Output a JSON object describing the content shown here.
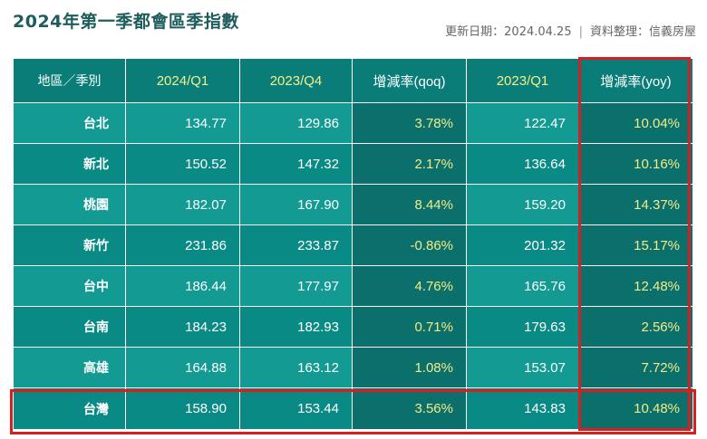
{
  "title": "2024年第一季都會區季指數",
  "source": {
    "updated": "更新日期：2024.04.25",
    "sep": "|",
    "org": "資料整理：信義房屋"
  },
  "colors": {
    "header_bg": "#0a7d78",
    "row_light": "#129a93",
    "row_dark": "#0a8a84",
    "rate_col_bg": "#0b6f6b",
    "rate_text": "#f2ec88",
    "highlight_border": "#d42020"
  },
  "chart_data": {
    "type": "table",
    "columns": [
      "地區／季別",
      "2024/Q1",
      "2023/Q4",
      "增減率(qoq)",
      "2023/Q1",
      "增減率(yoy)"
    ],
    "rows": [
      {
        "region": "台北",
        "q1_2024": "134.77",
        "q4_2023": "129.86",
        "qoq": "3.78%",
        "q1_2023": "122.47",
        "yoy": "10.04%"
      },
      {
        "region": "新北",
        "q1_2024": "150.52",
        "q4_2023": "147.32",
        "qoq": "2.17%",
        "q1_2023": "136.64",
        "yoy": "10.16%"
      },
      {
        "region": "桃園",
        "q1_2024": "182.07",
        "q4_2023": "167.90",
        "qoq": "8.44%",
        "q1_2023": "159.20",
        "yoy": "14.37%"
      },
      {
        "region": "新竹",
        "q1_2024": "231.86",
        "q4_2023": "233.87",
        "qoq": "-0.86%",
        "q1_2023": "201.32",
        "yoy": "15.17%"
      },
      {
        "region": "台中",
        "q1_2024": "186.44",
        "q4_2023": "177.97",
        "qoq": "4.76%",
        "q1_2023": "165.76",
        "yoy": "12.48%"
      },
      {
        "region": "台南",
        "q1_2024": "184.23",
        "q4_2023": "182.93",
        "qoq": "0.71%",
        "q1_2023": "179.63",
        "yoy": "2.56%"
      },
      {
        "region": "高雄",
        "q1_2024": "164.88",
        "q4_2023": "163.12",
        "qoq": "1.08%",
        "q1_2023": "153.07",
        "yoy": "7.72%"
      },
      {
        "region": "台灣",
        "q1_2024": "158.90",
        "q4_2023": "153.44",
        "qoq": "3.56%",
        "q1_2023": "143.83",
        "yoy": "10.48%"
      }
    ],
    "highlighted_column": "增減率(yoy)",
    "highlighted_row": "台灣"
  }
}
